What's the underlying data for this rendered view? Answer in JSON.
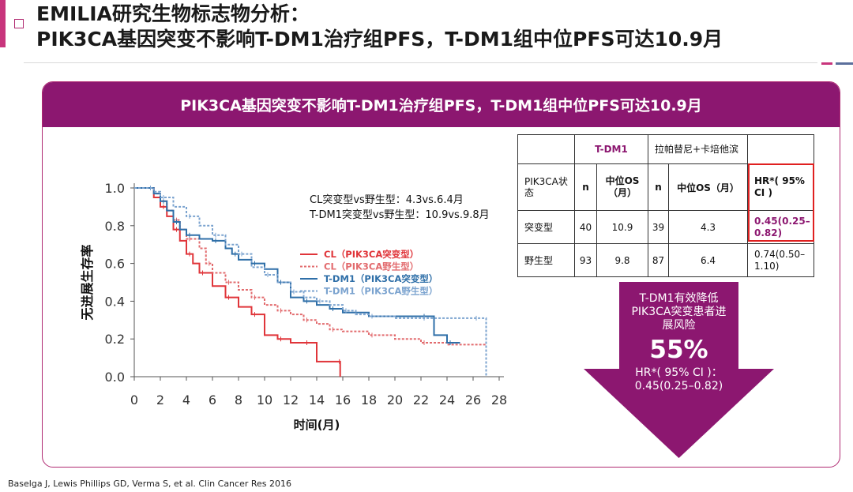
{
  "title": {
    "line1": "EMILIA研究生物标志物分析：",
    "line2": "PIK3CA基因突变不影响T-DM1治疗组PFS，T-DM1组中位PFS可达10.9月"
  },
  "banner": "PIK3CA基因突变不影响T-DM1治疗组PFS，T-DM1组中位PFS可达10.9月",
  "table": {
    "head1": {
      "tdm1": "T-DM1",
      "lap": "拉帕替尼+卡培他滨"
    },
    "head2": {
      "status": "PIK3CA状态",
      "n": "n",
      "os": "中位OS（月）",
      "n2": "n",
      "os2": "中位OS（月）",
      "hr": "HR*( 95% CI )"
    },
    "rows": [
      {
        "status": "突变型",
        "n1": "40",
        "os1": "10.9",
        "n2": "39",
        "os2": "4.3",
        "hr": "0.45(0.25–0.82)"
      },
      {
        "status": "野生型",
        "n1": "93",
        "os1": "9.8",
        "n2": "87",
        "os2": "6.4",
        "hr": "0.74(0.50–1.10)"
      }
    ]
  },
  "arrow": {
    "line1": "T-DM1有效降低PIK3CA突变患者进展风险",
    "big": "55%",
    "line2": "HR*( 95% CI )：0.45(0.25–0.82)"
  },
  "footnote": "Baselga J, Lewis Phillips GD, Verma S, et al. Clin Cancer Res 2016",
  "chart_data": {
    "type": "line",
    "ylabel": "无进展生存率",
    "xlabel": "时间(月)",
    "xlim": [
      0,
      28
    ],
    "ylim": [
      0,
      1.0
    ],
    "x_ticks": [
      "0",
      "2",
      "4",
      "6",
      "8",
      "10",
      "12",
      "14",
      "16",
      "18",
      "20",
      "22",
      "24",
      "26",
      "28"
    ],
    "y_ticks": [
      "0.0",
      "0.2",
      "0.4",
      "0.6",
      "0.8",
      "1.0"
    ],
    "grid": false,
    "legend_position": "center",
    "annotation": [
      "CL突变型vs野生型：4.3vs.6.4月",
      "T-DM1突变型vs野生型：10.9vs.9.8月"
    ],
    "series": [
      {
        "name": "CL（PIK3CA突变型）",
        "color": "#e0353a",
        "dash": "solid",
        "points": [
          [
            0,
            1.0
          ],
          [
            1,
            1.0
          ],
          [
            1.5,
            0.95
          ],
          [
            2,
            0.9
          ],
          [
            2.5,
            0.85
          ],
          [
            3,
            0.78
          ],
          [
            3.5,
            0.72
          ],
          [
            4,
            0.65
          ],
          [
            4.5,
            0.6
          ],
          [
            5,
            0.55
          ],
          [
            6,
            0.48
          ],
          [
            7,
            0.42
          ],
          [
            8,
            0.37
          ],
          [
            9,
            0.33
          ],
          [
            10,
            0.22
          ],
          [
            11,
            0.2
          ],
          [
            12,
            0.18
          ],
          [
            13,
            0.18
          ],
          [
            14,
            0.08
          ],
          [
            15.5,
            0.08
          ],
          [
            15.8,
            0.0
          ]
        ]
      },
      {
        "name": "CL（PIK3CA野生型）",
        "color": "#e26b6e",
        "dash": "dashed",
        "points": [
          [
            0,
            1.0
          ],
          [
            1,
            1.0
          ],
          [
            1.5,
            0.97
          ],
          [
            2,
            0.93
          ],
          [
            2.5,
            0.88
          ],
          [
            3,
            0.83
          ],
          [
            3.5,
            0.78
          ],
          [
            4,
            0.73
          ],
          [
            5,
            0.68
          ],
          [
            5.5,
            0.6
          ],
          [
            6,
            0.55
          ],
          [
            7,
            0.5
          ],
          [
            8,
            0.46
          ],
          [
            9,
            0.42
          ],
          [
            10,
            0.38
          ],
          [
            11,
            0.35
          ],
          [
            12,
            0.33
          ],
          [
            13,
            0.3
          ],
          [
            14,
            0.28
          ],
          [
            15,
            0.25
          ],
          [
            16,
            0.24
          ],
          [
            18,
            0.22
          ],
          [
            20,
            0.2
          ],
          [
            22,
            0.18
          ],
          [
            24,
            0.17
          ],
          [
            27,
            0.17
          ]
        ]
      },
      {
        "name": "T-DM1（PIK3CA突变型）",
        "color": "#2f6fa8",
        "dash": "solid",
        "points": [
          [
            0,
            1.0
          ],
          [
            1,
            1.0
          ],
          [
            1.5,
            0.97
          ],
          [
            2,
            0.93
          ],
          [
            2.5,
            0.88
          ],
          [
            3,
            0.82
          ],
          [
            3.5,
            0.78
          ],
          [
            4,
            0.75
          ],
          [
            5,
            0.73
          ],
          [
            6,
            0.72
          ],
          [
            7,
            0.68
          ],
          [
            7.5,
            0.65
          ],
          [
            8,
            0.62
          ],
          [
            9,
            0.6
          ],
          [
            10,
            0.57
          ],
          [
            11,
            0.5
          ],
          [
            12,
            0.42
          ],
          [
            13,
            0.4
          ],
          [
            14,
            0.38
          ],
          [
            15,
            0.36
          ],
          [
            16,
            0.34
          ],
          [
            18,
            0.32
          ],
          [
            20,
            0.32
          ],
          [
            22,
            0.32
          ],
          [
            23,
            0.22
          ],
          [
            24,
            0.18
          ],
          [
            25,
            0.18
          ]
        ]
      },
      {
        "name": "T-DM1（PIK3CA野生型）",
        "color": "#7ba3cf",
        "dash": "dashed",
        "points": [
          [
            0,
            1.0
          ],
          [
            1,
            1.0
          ],
          [
            1.5,
            0.98
          ],
          [
            2,
            0.95
          ],
          [
            3,
            0.9
          ],
          [
            4,
            0.85
          ],
          [
            5,
            0.8
          ],
          [
            6,
            0.75
          ],
          [
            7,
            0.7
          ],
          [
            8,
            0.65
          ],
          [
            9,
            0.58
          ],
          [
            10,
            0.54
          ],
          [
            11,
            0.5
          ],
          [
            12,
            0.45
          ],
          [
            13,
            0.42
          ],
          [
            14,
            0.4
          ],
          [
            15,
            0.38
          ],
          [
            16,
            0.35
          ],
          [
            17,
            0.33
          ],
          [
            18,
            0.32
          ],
          [
            20,
            0.31
          ],
          [
            22,
            0.31
          ],
          [
            24,
            0.31
          ],
          [
            26,
            0.31
          ],
          [
            27,
            0.31
          ],
          [
            27,
            0.0
          ]
        ]
      }
    ]
  }
}
